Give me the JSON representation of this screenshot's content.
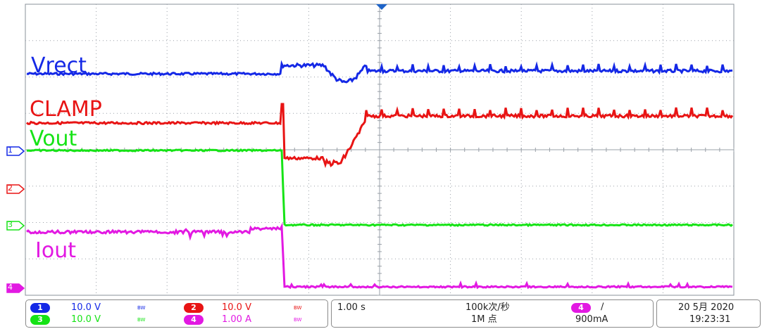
{
  "screen": {
    "traces": [
      {
        "name": "Vrect",
        "color": "#1428e6"
      },
      {
        "name": "CLAMP",
        "color": "#e81414"
      },
      {
        "name": "Vout",
        "color": "#16e316"
      },
      {
        "name": "Iout",
        "color": "#e219e2"
      }
    ],
    "markers": [
      {
        "label": "1",
        "color": "#1428e6"
      },
      {
        "label": "2",
        "color": "#e81414"
      },
      {
        "label": "3",
        "color": "#16e316"
      },
      {
        "label": "4",
        "color": "#e219e2"
      }
    ],
    "trigger_marker_color": "#1e63c8",
    "grid_color": "#9aa0a8"
  },
  "status_bar": {
    "ch1": {
      "num": "1",
      "scale": "10.0 V",
      "bw": "BW",
      "color": "#1428e6"
    },
    "ch2": {
      "num": "2",
      "scale": "10.0 V",
      "bw": "BW",
      "color": "#e81414"
    },
    "ch3": {
      "num": "3",
      "scale": "10.0 V",
      "bw": "BW",
      "color": "#16e316"
    },
    "ch4": {
      "num": "4",
      "scale": "1.00 A",
      "bw": "BW",
      "color": "#e219e2"
    },
    "timebase": "1.00 s",
    "sample_rate": "100k次/秒",
    "record_length": "1M 点",
    "trigger_source": "4",
    "trigger_slope": "∕",
    "trigger_level": "900mA",
    "date": "20 5月 2020",
    "time": "19:23:31"
  }
}
